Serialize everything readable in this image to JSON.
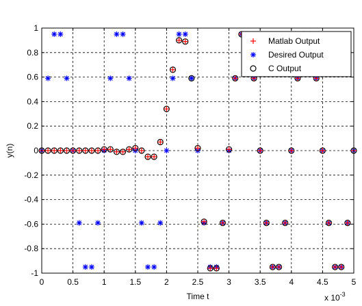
{
  "chart_data": {
    "type": "scatter",
    "title": "",
    "xlabel": "Time t",
    "ylabel": "y(n)",
    "x_exponent_label": "x 10",
    "x_exponent_power": "-3",
    "xlim": [
      0,
      5
    ],
    "ylim": [
      -1,
      1
    ],
    "xticks": [
      0,
      0.5,
      1,
      1.5,
      2,
      2.5,
      3,
      3.5,
      4,
      4.5,
      5
    ],
    "xtick_labels": [
      "0",
      "0.5",
      "1",
      "1.5",
      "2",
      "2.5",
      "3",
      "3.5",
      "4",
      "4.5",
      "5"
    ],
    "yticks": [
      -1,
      -0.8,
      -0.6,
      -0.4,
      -0.2,
      0,
      0.2,
      0.4,
      0.6,
      0.8,
      1
    ],
    "ytick_labels": [
      "-1",
      "-0.8",
      "-0.6",
      "-0.4",
      "-0.2",
      "0",
      "0.2",
      "0.4",
      "0.6",
      "0.8",
      "1"
    ],
    "grid": true,
    "legend_position": "top-right",
    "series": [
      {
        "name": "Matlab Output",
        "marker": "plus",
        "color": "#ff0000",
        "x": [
          0,
          0.1,
          0.2,
          0.3,
          0.4,
          0.5,
          0.6,
          0.7,
          0.8,
          0.9,
          1.0,
          1.1,
          1.2,
          1.3,
          1.4,
          1.5,
          1.6,
          1.7,
          1.8,
          1.9,
          2.0,
          2.1,
          2.2,
          2.3,
          2.5,
          2.6,
          2.7,
          2.8,
          2.9,
          3.0,
          3.1,
          3.2,
          3.3,
          3.4,
          3.5,
          3.6,
          3.7,
          3.8,
          3.9,
          4.0,
          4.1,
          4.2,
          4.3,
          4.4,
          4.5,
          4.6,
          4.7,
          4.8,
          4.9,
          5.0
        ],
        "y": [
          0,
          0,
          0,
          0,
          0,
          0,
          0,
          0,
          0,
          0,
          0.01,
          0.01,
          -0.01,
          -0.01,
          0.01,
          0.02,
          0,
          -0.05,
          -0.05,
          0.07,
          0.34,
          0.66,
          0.9,
          0.89,
          0.02,
          -0.58,
          -0.96,
          -0.96,
          -0.59,
          0.01,
          0.59,
          0.95,
          0.95,
          0.59,
          0,
          -0.59,
          -0.95,
          -0.95,
          -0.59,
          0,
          0.59,
          0.95,
          0.95,
          0.59,
          0,
          -0.59,
          -0.95,
          -0.95,
          -0.59,
          0
        ]
      },
      {
        "name": "Desired  Output",
        "marker": "star",
        "color": "#0000ff",
        "x": [
          0,
          0.1,
          0.2,
          0.3,
          0.4,
          0.5,
          0.6,
          0.7,
          0.8,
          0.9,
          1.0,
          1.1,
          1.2,
          1.3,
          1.4,
          1.5,
          1.6,
          1.7,
          1.8,
          1.9,
          2.0,
          2.1,
          2.2,
          2.3,
          2.4,
          2.5,
          2.6,
          2.7,
          2.8,
          2.9,
          3.0,
          3.1,
          3.2,
          3.3,
          3.4,
          3.5,
          3.6,
          3.7,
          3.8,
          3.9,
          4.0,
          4.1,
          4.2,
          4.3,
          4.4,
          4.5,
          4.6,
          4.7,
          4.8,
          4.9,
          5.0
        ],
        "y": [
          0,
          0.59,
          0.95,
          0.95,
          0.59,
          0,
          -0.59,
          -0.95,
          -0.95,
          -0.59,
          0,
          0.59,
          0.95,
          0.95,
          0.59,
          0,
          -0.59,
          -0.95,
          -0.95,
          -0.59,
          0,
          0.59,
          0.95,
          0.95,
          0.59,
          0,
          -0.59,
          -0.95,
          -0.95,
          -0.59,
          0,
          0.59,
          0.95,
          0.95,
          0.59,
          0,
          -0.59,
          -0.95,
          -0.95,
          -0.59,
          0,
          0.59,
          0.95,
          0.95,
          0.59,
          0,
          -0.59,
          -0.95,
          -0.95,
          -0.59,
          0
        ]
      },
      {
        "name": "C Output",
        "marker": "circle",
        "color": "#000000",
        "x": [
          0,
          0.1,
          0.2,
          0.3,
          0.4,
          0.5,
          0.6,
          0.7,
          0.8,
          0.9,
          1.0,
          1.1,
          1.2,
          1.3,
          1.4,
          1.5,
          1.6,
          1.7,
          1.8,
          1.9,
          2.0,
          2.1,
          2.2,
          2.3,
          2.4,
          2.5,
          2.6,
          2.7,
          2.8,
          2.9,
          3.0,
          3.1,
          3.2,
          3.3,
          3.4,
          3.5,
          3.6,
          3.7,
          3.8,
          3.9,
          4.0,
          4.1,
          4.2,
          4.3,
          4.4,
          4.5,
          4.6,
          4.7,
          4.8,
          4.9,
          5.0
        ],
        "y": [
          0,
          0,
          0,
          0,
          0,
          0,
          0,
          0,
          0,
          0,
          0.01,
          0.01,
          -0.01,
          -0.01,
          0.01,
          0.02,
          0,
          -0.05,
          -0.05,
          0.07,
          0.34,
          0.66,
          0.9,
          0.89,
          0.59,
          0.02,
          -0.58,
          -0.96,
          -0.96,
          -0.59,
          0.01,
          0.59,
          0.95,
          0.95,
          0.59,
          0,
          -0.59,
          -0.95,
          -0.95,
          -0.59,
          0,
          0.59,
          0.95,
          0.95,
          0.59,
          0,
          -0.59,
          -0.95,
          -0.95,
          -0.59,
          0
        ]
      }
    ]
  }
}
